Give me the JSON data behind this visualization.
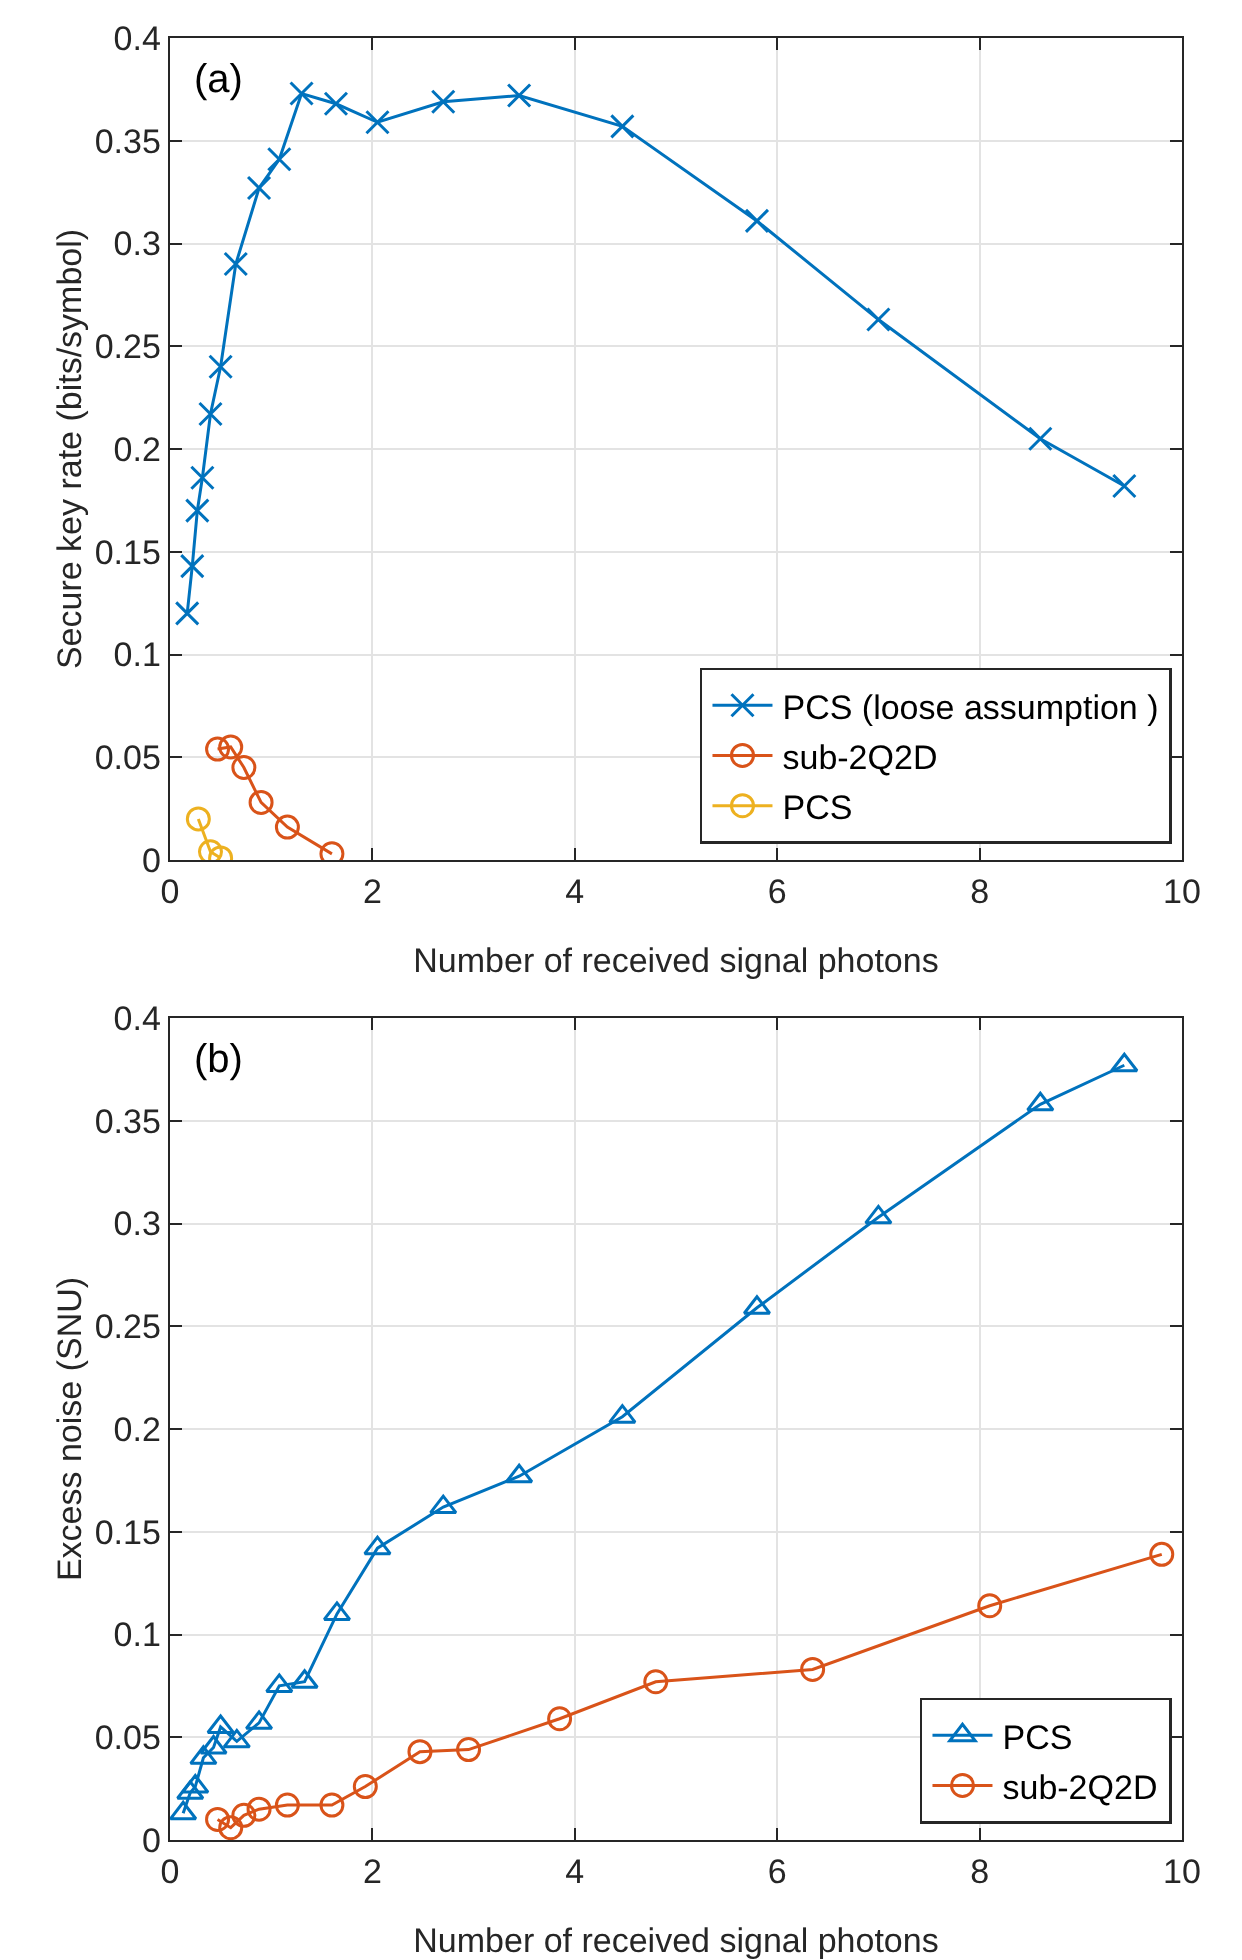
{
  "chart_data": [
    {
      "type": "line",
      "xlabel": "Number of received signal photons",
      "ylabel": "Secure key rate (bits/symbol)",
      "annotations": [
        "(a)"
      ],
      "xlim": [
        0,
        10
      ],
      "xticks": [
        0,
        2,
        4,
        6,
        8,
        10
      ],
      "ylim": [
        0,
        0.4
      ],
      "yticks": [
        0,
        0.05,
        0.1,
        0.15,
        0.2,
        0.25,
        0.3,
        0.35,
        0.4
      ],
      "grid": true,
      "legend": "bottom right",
      "line_style": "solid",
      "series": [
        {
          "name": "PCS (loose assumption )",
          "color": "#0072bd",
          "marker": "cross",
          "x": [
            0.17,
            0.22,
            0.27,
            0.32,
            0.4,
            0.5,
            0.65,
            0.88,
            1.08,
            1.3,
            1.64,
            2.05,
            2.7,
            3.45,
            4.47,
            5.8,
            7.0,
            8.6,
            9.43
          ],
          "values": [
            0.12,
            0.143,
            0.17,
            0.186,
            0.217,
            0.24,
            0.29,
            0.327,
            0.341,
            0.373,
            0.368,
            0.359,
            0.369,
            0.372,
            0.357,
            0.311,
            0.263,
            0.205,
            0.182
          ]
        },
        {
          "name": "sub-2Q2D",
          "color": "#d95319",
          "marker": "circle",
          "x": [
            0.47,
            0.6,
            0.73,
            0.9,
            1.16,
            1.6
          ],
          "values": [
            0.054,
            0.055,
            0.045,
            0.028,
            0.016,
            0.003
          ]
        },
        {
          "name": "PCS",
          "color": "#edb120",
          "marker": "circle",
          "x": [
            0.28,
            0.4,
            0.5
          ],
          "values": [
            0.02,
            0.004,
            0.001
          ]
        }
      ]
    },
    {
      "type": "line",
      "xlabel": "Number of received signal photons",
      "ylabel": "Excess noise (SNU)",
      "annotations": [
        "(b)"
      ],
      "xlim": [
        0,
        10
      ],
      "xticks": [
        0,
        2,
        4,
        6,
        8,
        10
      ],
      "ylim": [
        0,
        0.4
      ],
      "yticks": [
        0,
        0.05,
        0.1,
        0.15,
        0.2,
        0.25,
        0.3,
        0.35,
        0.4
      ],
      "grid": true,
      "legend": "bottom right",
      "line_style": "solid",
      "series": [
        {
          "name": "PCS",
          "color": "#0072bd",
          "marker": "triangle",
          "x": [
            0.13,
            0.2,
            0.25,
            0.33,
            0.43,
            0.5,
            0.66,
            0.88,
            1.08,
            1.33,
            1.65,
            2.05,
            2.7,
            3.45,
            4.47,
            5.8,
            7.0,
            8.6,
            9.43
          ],
          "values": [
            0.013,
            0.023,
            0.026,
            0.04,
            0.045,
            0.055,
            0.048,
            0.057,
            0.075,
            0.077,
            0.11,
            0.142,
            0.162,
            0.177,
            0.206,
            0.259,
            0.303,
            0.358,
            0.377
          ]
        },
        {
          "name": "sub-2Q2D",
          "color": "#d95319",
          "marker": "circle",
          "x": [
            0.47,
            0.6,
            0.73,
            0.88,
            1.16,
            1.6,
            1.93,
            2.47,
            2.95,
            3.85,
            4.8,
            6.35,
            8.1,
            9.8
          ],
          "values": [
            0.01,
            0.006,
            0.012,
            0.015,
            0.017,
            0.017,
            0.026,
            0.043,
            0.044,
            0.059,
            0.077,
            0.083,
            0.114,
            0.139
          ]
        }
      ]
    }
  ]
}
